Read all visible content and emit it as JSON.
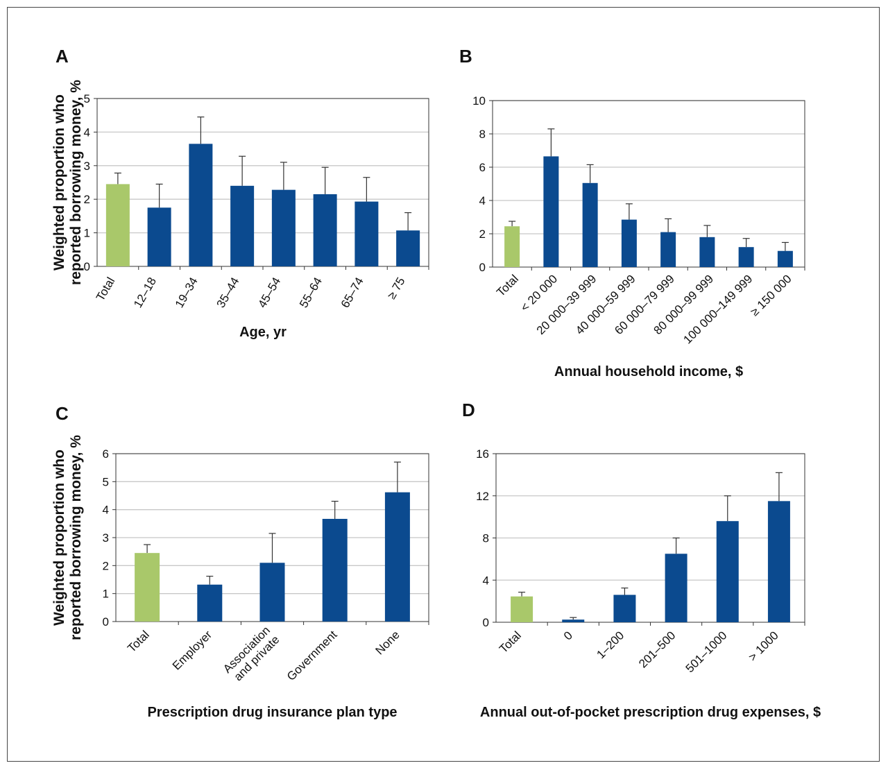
{
  "colors": {
    "total": "#a9c86a",
    "bar": "#0b4a8f",
    "grid": "#c8c8c8",
    "axis": "#333333",
    "errorbar": "#333333"
  },
  "chart_data": [
    {
      "panel_label": "A",
      "type": "bar",
      "ylabel_lines": [
        "Weighted proportion who",
        "reported borrowing money, %"
      ],
      "xlabel": "Age, yr",
      "ylim": [
        0,
        5
      ],
      "yticks": [
        0,
        1,
        2,
        3,
        4,
        5
      ],
      "grid": true,
      "categories": [
        "Total",
        "12–18",
        "19–34",
        "35–44",
        "45–54",
        "55–64",
        "65–74",
        "≥ 75"
      ],
      "values": [
        2.45,
        1.75,
        3.65,
        2.4,
        2.28,
        2.15,
        1.93,
        1.07
      ],
      "error_upper": [
        2.78,
        2.45,
        4.45,
        3.28,
        3.1,
        2.95,
        2.65,
        1.6
      ],
      "highlight_index": 0
    },
    {
      "panel_label": "B",
      "type": "bar",
      "xlabel": "Annual household income, $",
      "ylim": [
        0,
        10
      ],
      "yticks": [
        0,
        2,
        4,
        6,
        8,
        10
      ],
      "grid": true,
      "categories": [
        "Total",
        "< 20 000",
        "20 000–39 999",
        "40 000–59 999",
        "60 000–79 999",
        "80 000–99 999",
        "100 000–149 999",
        "≥ 150 000"
      ],
      "values": [
        2.45,
        6.65,
        5.05,
        2.85,
        2.1,
        1.8,
        1.2,
        0.97
      ],
      "error_upper": [
        2.75,
        8.3,
        6.15,
        3.8,
        2.9,
        2.5,
        1.72,
        1.48
      ],
      "highlight_index": 0
    },
    {
      "panel_label": "C",
      "type": "bar",
      "ylabel_lines": [
        "Weighted proportion who",
        "reported borrowing money, %"
      ],
      "xlabel": "Prescription drug insurance plan type",
      "ylim": [
        0,
        6
      ],
      "yticks": [
        0,
        1,
        2,
        3,
        4,
        5,
        6
      ],
      "grid": true,
      "categories": [
        "Total",
        "Employer",
        "Association and private",
        "Government",
        "None"
      ],
      "category_lines": [
        [
          "Total"
        ],
        [
          "Employer"
        ],
        [
          "Association",
          "and private"
        ],
        [
          "Government"
        ],
        [
          "None"
        ]
      ],
      "values": [
        2.45,
        1.32,
        2.1,
        3.67,
        4.62
      ],
      "error_upper": [
        2.75,
        1.62,
        3.15,
        4.3,
        5.7
      ],
      "highlight_index": 0
    },
    {
      "panel_label": "D",
      "type": "bar",
      "xlabel": "Annual out-of-pocket prescription drug expenses, $",
      "ylim": [
        0,
        16
      ],
      "yticks": [
        0,
        4,
        8,
        12,
        16
      ],
      "grid": true,
      "categories": [
        "Total",
        "0",
        "1–200",
        "201–500",
        "501–1000",
        "> 1000"
      ],
      "values": [
        2.45,
        0.25,
        2.6,
        6.5,
        9.6,
        11.5
      ],
      "error_upper": [
        2.85,
        0.45,
        3.25,
        8.0,
        12.0,
        14.2
      ],
      "highlight_index": 0
    }
  ]
}
